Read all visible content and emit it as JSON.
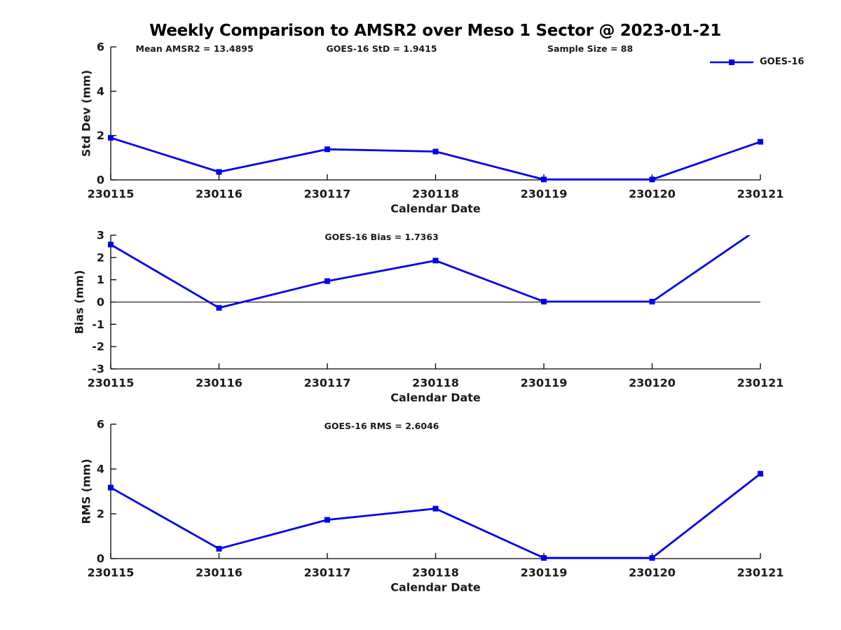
{
  "title": "Weekly Comparison to AMSR2 over Meso 1 Sector @ 2023-01-21",
  "legend": {
    "label": "GOES-16",
    "color": "#0000EE",
    "marker": "square"
  },
  "colors": {
    "line": "#0000EE",
    "axis": "#000000",
    "text": "#1a1a1a",
    "background": "#ffffff"
  },
  "chart_data": [
    {
      "type": "line",
      "id": "std-dev",
      "categories": [
        "230115",
        "230116",
        "230117",
        "230118",
        "230119",
        "230120",
        "230121"
      ],
      "series": [
        {
          "name": "GOES-16",
          "values": [
            1.9,
            0.36,
            1.38,
            1.28,
            0.02,
            0.02,
            1.72
          ]
        }
      ],
      "xlabel": "Calendar Date",
      "ylabel": "Std Dev (mm)",
      "ylim": [
        0,
        6
      ],
      "yticks": [
        0,
        2,
        4,
        6
      ],
      "zero_line": false,
      "grid": false,
      "annotations": [
        {
          "text": "Mean AMSR2 = 13.4895",
          "xfrac": 0.129
        },
        {
          "text": "GOES-16 StD = 1.9415",
          "xfrac": 0.417
        },
        {
          "text": "Sample Size = 88",
          "xfrac": 0.738
        }
      ]
    },
    {
      "type": "line",
      "id": "bias",
      "categories": [
        "230115",
        "230116",
        "230117",
        "230118",
        "230119",
        "230120",
        "230121"
      ],
      "series": [
        {
          "name": "GOES-16",
          "values": [
            2.58,
            -0.26,
            0.94,
            1.86,
            0.02,
            0.02,
            3.35
          ]
        }
      ],
      "clipped_at_ymax": true,
      "xlabel": "Calendar Date",
      "ylabel": "Bias (mm)",
      "ylim": [
        -3,
        3
      ],
      "yticks": [
        3,
        2,
        1,
        0,
        -1,
        -2,
        -3
      ],
      "zero_line": true,
      "grid": false,
      "annotations": [
        {
          "text": "GOES-16 Bias = 1.7363",
          "xfrac": 0.417
        }
      ]
    },
    {
      "type": "line",
      "id": "rms",
      "categories": [
        "230115",
        "230116",
        "230117",
        "230118",
        "230119",
        "230120",
        "230121"
      ],
      "series": [
        {
          "name": "GOES-16",
          "values": [
            3.17,
            0.44,
            1.73,
            2.23,
            0.03,
            0.03,
            3.79
          ]
        }
      ],
      "xlabel": "Calendar Date",
      "ylabel": "RMS (mm)",
      "ylim": [
        0,
        6
      ],
      "yticks": [
        0,
        2,
        4,
        6
      ],
      "zero_line": false,
      "grid": false,
      "annotations": [
        {
          "text": "GOES-16 RMS = 2.6046",
          "xfrac": 0.417
        }
      ]
    }
  ]
}
